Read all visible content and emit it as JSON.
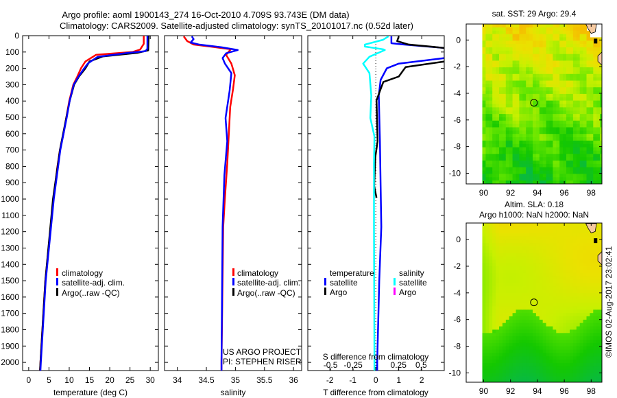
{
  "header": {
    "title_line1": "Argo profile: aoml 1900143_274 16-Oct-2010 4.709S 93.743E (DM data)",
    "title_line2": "Climatology: CARS2009. Satellite-adjusted climatology: synTS_20101017.nc (0.52d later)"
  },
  "colors": {
    "climatology": "#ff0000",
    "satellite": "#0000ff",
    "argo": "#000000",
    "salinity_satellite": "#00ffff",
    "salinity_argo": "#ff00ff",
    "land": "#f5c9a0"
  },
  "legend": {
    "climatology": "climatology",
    "satellite_adj": "satellite-adj. clim.",
    "argo_raw": "Argo(..raw -QC)",
    "temperature_head": "temperature",
    "salinity_head": "salinity",
    "satellite": "satellite",
    "argo": "Argo"
  },
  "credits": {
    "project": "US ARGO PROJECT",
    "pi": "PI: STEPHEN RISER",
    "copyright": "©IMOS 02-Aug-2017 23:02:41"
  },
  "chart_data": [
    {
      "id": "temperature",
      "type": "line",
      "xlabel": "temperature (deg C)",
      "ylabel": "",
      "xlim": [
        -1.5,
        32
      ],
      "ylim": [
        0,
        2050
      ],
      "y_reversed": true,
      "xticks": [
        0,
        5,
        10,
        15,
        20,
        25,
        30
      ],
      "yticks": [
        0,
        100,
        200,
        300,
        400,
        500,
        600,
        700,
        800,
        900,
        1000,
        1100,
        1200,
        1300,
        1400,
        1500,
        1600,
        1700,
        1800,
        1900,
        2000
      ],
      "series": [
        {
          "name": "climatology",
          "color": "#ff0000",
          "points": [
            [
              0,
              28.4
            ],
            [
              50,
              28.4
            ],
            [
              85,
              27.5
            ],
            [
              100,
              25.6
            ],
            [
              117,
              16.6
            ],
            [
              158,
              14
            ],
            [
              200,
              12.9
            ],
            [
              250,
              12
            ],
            [
              300,
              11
            ],
            [
              400,
              10
            ],
            [
              500,
              9.3
            ],
            [
              600,
              8.6
            ],
            [
              700,
              7.7
            ],
            [
              800,
              7.1
            ],
            [
              900,
              6.6
            ],
            [
              1000,
              6.1
            ],
            [
              1200,
              5.3
            ],
            [
              1500,
              4.1
            ],
            [
              2000,
              2.9
            ],
            [
              2050,
              2.8
            ]
          ]
        },
        {
          "name": "Argo",
          "color": "#000000",
          "points": [
            [
              0,
              29.6
            ],
            [
              90,
              29.5
            ],
            [
              105,
              26.8
            ],
            [
              127,
              18.3
            ],
            [
              158,
              15
            ],
            [
              200,
              14
            ],
            [
              250,
              12.4
            ],
            [
              300,
              11.2
            ],
            [
              400,
              10.1
            ],
            [
              500,
              9.3
            ],
            [
              700,
              7.7
            ],
            [
              1000,
              6.0
            ],
            [
              1500,
              4.1
            ],
            [
              2000,
              2.9
            ],
            [
              2050,
              2.8
            ]
          ]
        },
        {
          "name": "satellite-adj. clim.",
          "color": "#0000ff",
          "points": [
            [
              0,
              29.3
            ],
            [
              80,
              29.3
            ],
            [
              95,
              28.8
            ],
            [
              105,
              24.6
            ],
            [
              130,
              17
            ],
            [
              170,
              14.6
            ],
            [
              200,
              13.7
            ],
            [
              250,
              12.3
            ],
            [
              300,
              11.1
            ],
            [
              400,
              10.1
            ],
            [
              500,
              9.4
            ],
            [
              700,
              7.8
            ],
            [
              1000,
              6.2
            ],
            [
              1500,
              4.2
            ],
            [
              2000,
              3.0
            ],
            [
              2050,
              2.9
            ]
          ]
        }
      ]
    },
    {
      "id": "salinity",
      "type": "line",
      "xlabel": "salinity",
      "ylabel": "",
      "xlim": [
        33.78,
        36.14
      ],
      "ylim": [
        0,
        2050
      ],
      "y_reversed": true,
      "xticks": [
        34,
        34.5,
        35,
        35.5,
        36
      ],
      "yticks": [
        0,
        100,
        200,
        300,
        400,
        500,
        600,
        700,
        800,
        900,
        1000,
        1100,
        1200,
        1300,
        1400,
        1500,
        1600,
        1700,
        1800,
        1900,
        2000
      ],
      "series": [
        {
          "name": "climatology",
          "color": "#ff0000",
          "points": [
            [
              4,
              34.11
            ],
            [
              33,
              34.17
            ],
            [
              54,
              34.28
            ],
            [
              67,
              34.57
            ],
            [
              83,
              34.92
            ],
            [
              100,
              34.88
            ],
            [
              117,
              34.84
            ],
            [
              171,
              34.93
            ],
            [
              242,
              34.99
            ],
            [
              325,
              34.96
            ],
            [
              437,
              34.91
            ],
            [
              575,
              34.89
            ],
            [
              783,
              34.86
            ],
            [
              992,
              34.82
            ],
            [
              1170,
              34.79
            ],
            [
              2000,
              34.76
            ],
            [
              2050,
              34.76
            ]
          ]
        },
        {
          "name": "satellite-adj. clim.",
          "color": "#0000ff",
          "points": [
            [
              4,
              34.25
            ],
            [
              21,
              34.28
            ],
            [
              42,
              34.23
            ],
            [
              54,
              34.37
            ],
            [
              71,
              34.76
            ],
            [
              88,
              35.04
            ],
            [
              108,
              34.84
            ],
            [
              137,
              34.78
            ],
            [
              171,
              34.82
            ],
            [
              229,
              34.93
            ],
            [
              338,
              34.9
            ],
            [
              504,
              34.83
            ],
            [
              646,
              34.86
            ],
            [
              854,
              34.81
            ],
            [
              1170,
              34.78
            ],
            [
              2000,
              34.76
            ],
            [
              2050,
              34.76
            ]
          ]
        }
      ]
    },
    {
      "id": "difference",
      "type": "line",
      "xlabel": "T difference from climatology",
      "x2label": "S difference from climatology",
      "xlim": [
        -2.96,
        2.98
      ],
      "x2lim": [
        -0.75,
        0.755
      ],
      "ylim": [
        0,
        2050
      ],
      "y_reversed": true,
      "xticks": [
        -2,
        -1,
        0,
        1,
        2
      ],
      "x2ticks": [
        -0.5,
        -0.25,
        0,
        0.25,
        0.5
      ],
      "yticks": [
        0,
        100,
        200,
        300,
        400,
        500,
        600,
        700,
        800,
        900,
        1000,
        1100,
        1200,
        1300,
        1400,
        1500,
        1600,
        1700,
        1800,
        1900,
        2000
      ],
      "series": [
        {
          "name": "temperature satellite",
          "axis": "T",
          "color": "#0000ff",
          "points": [
            [
              4,
              0.68
            ],
            [
              46,
              0.68
            ],
            [
              54,
              1.22
            ],
            [
              75,
              3.0
            ],
            [
              137,
              3.0
            ],
            [
              171,
              1.0
            ],
            [
              200,
              0.48
            ],
            [
              271,
              0.21
            ],
            [
              367,
              0.13
            ],
            [
              646,
              0.18
            ],
            [
              921,
              0.21
            ],
            [
              1171,
              0.24
            ],
            [
              1500,
              0.15
            ],
            [
              2000,
              0.06
            ],
            [
              2050,
              0.06
            ]
          ]
        },
        {
          "name": "temperature Argo",
          "axis": "T",
          "color": "#000000",
          "points": [
            [
              4,
              1.0
            ],
            [
              33,
              0.93
            ],
            [
              54,
              1.43
            ],
            [
              75,
              3.0
            ],
            [
              158,
              3.0
            ],
            [
              192,
              1.3
            ],
            [
              250,
              1.0
            ],
            [
              283,
              0.33
            ],
            [
              338,
              0.18
            ],
            [
              396,
              0.03
            ],
            [
              646,
              0.08
            ],
            [
              742,
              -0.02
            ],
            [
              921,
              -0.07
            ],
            [
              992,
              0.03
            ]
          ]
        },
        {
          "name": "salinity satellite",
          "axis": "S",
          "color": "#00ffff",
          "points": [
            [
              4,
              0.14
            ],
            [
              25,
              0.08
            ],
            [
              54,
              -0.12
            ],
            [
              67,
              -0.12
            ],
            [
              83,
              0.08
            ],
            [
              88,
              0.1
            ],
            [
              129,
              -0.07
            ],
            [
              171,
              -0.14
            ],
            [
              229,
              -0.07
            ],
            [
              367,
              -0.05
            ],
            [
              504,
              -0.06
            ],
            [
              617,
              -0.015
            ],
            [
              783,
              -0.02
            ],
            [
              1171,
              -0.02
            ],
            [
              2000,
              -0.015
            ],
            [
              2050,
              -0.015
            ]
          ]
        }
      ]
    },
    {
      "id": "sst-map",
      "type": "heatmap",
      "title": "sat. SST: 29 Argo: 29.4",
      "xlim": [
        88.7,
        98.8
      ],
      "ylim": [
        -10.8,
        1.2
      ],
      "xticks": [
        90,
        92,
        94,
        96,
        98
      ],
      "yticks": [
        0,
        -2,
        -4,
        -6,
        -8,
        -10
      ],
      "marker": {
        "lon": 93.743,
        "lat": -4.709
      }
    },
    {
      "id": "sla-map",
      "type": "heatmap",
      "title": "Altim. SLA: 0.18",
      "subtitle": "Argo h1000: NaN h2000: NaN",
      "xlim": [
        88.7,
        98.8
      ],
      "ylim": [
        -10.7,
        1.24
      ],
      "xticks": [
        90,
        92,
        94,
        96,
        98
      ],
      "yticks": [
        0,
        -2,
        -4,
        -6,
        -8,
        -10
      ],
      "marker": {
        "lon": 93.743,
        "lat": -4.709
      }
    }
  ]
}
